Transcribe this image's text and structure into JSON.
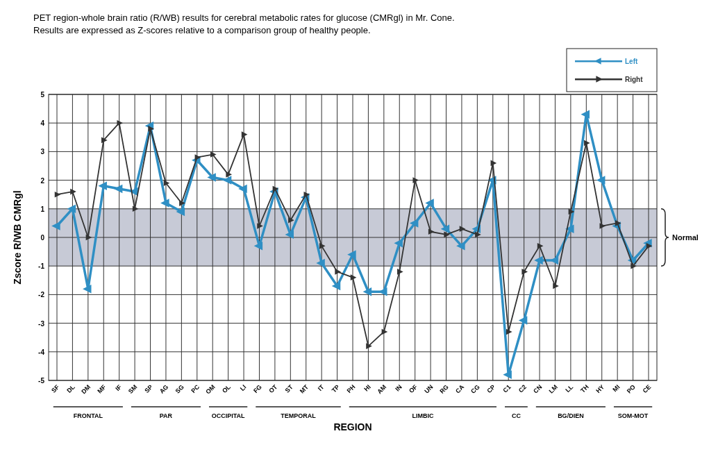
{
  "chart_data": {
    "type": "line",
    "title": "PET region-whole brain ratio (R/WB) results for cerebral metabolic rates for glucose (CMRgl) in Mr. Cone.",
    "subtitle": "Results are expressed as Z-scores relative to a comparison group of healthy people.",
    "xlabel": "REGION",
    "ylabel": "Zscore R/WB CMRgl",
    "categories": [
      "SF",
      "DL",
      "DM",
      "MF",
      "IF",
      "SM",
      "SP",
      "AG",
      "SG",
      "PC",
      "OM",
      "OL",
      "LI",
      "FG",
      "OT",
      "ST",
      "MT",
      "IT",
      "TP",
      "PH",
      "HI",
      "AM",
      "IN",
      "OF",
      "UN",
      "RG",
      "CA",
      "CG",
      "CP",
      "C1",
      "C2",
      "CN",
      "LM",
      "LL",
      "TH",
      "HY",
      "MI",
      "PO",
      "CE"
    ],
    "series": [
      {
        "name": "Left",
        "color": "#2f8fc4",
        "values": [
          0.4,
          1.0,
          -1.8,
          1.8,
          1.7,
          1.6,
          3.9,
          1.2,
          0.9,
          2.7,
          2.1,
          2.0,
          1.7,
          -0.3,
          1.6,
          0.1,
          1.4,
          -0.9,
          -1.7,
          -0.6,
          -1.9,
          -1.9,
          -0.2,
          0.5,
          1.2,
          0.3,
          -0.3,
          0.3,
          2.0,
          -4.8,
          -2.9,
          -0.8,
          -0.8,
          0.3,
          4.3,
          2.0,
          0.4,
          -0.8,
          -0.2
        ]
      },
      {
        "name": "Right",
        "color": "#333333",
        "values": [
          1.5,
          1.6,
          0.0,
          3.4,
          4.0,
          1.0,
          3.8,
          1.9,
          1.2,
          2.8,
          2.9,
          2.2,
          3.6,
          0.4,
          1.7,
          0.6,
          1.5,
          -0.3,
          -1.2,
          -1.4,
          -3.8,
          -3.3,
          -1.2,
          2.0,
          0.2,
          0.1,
          0.3,
          0.1,
          2.6,
          -3.3,
          -1.2,
          -0.3,
          -1.7,
          0.9,
          3.3,
          0.4,
          0.5,
          -1.0,
          -0.3
        ]
      }
    ],
    "ylim": [
      -5,
      5
    ],
    "yticks": [
      -5,
      -4,
      -3,
      -2,
      -1,
      0,
      1,
      2,
      3,
      4,
      5
    ],
    "grid": true,
    "legend": "top right",
    "marker": "triangle",
    "line_style": "solid",
    "bands": [
      {
        "axis": "y",
        "from": -1,
        "to": 1,
        "label": "Normal",
        "color": "#b9bdcc"
      }
    ],
    "annotations": [
      "FRONTAL",
      "PAR",
      "OCCIPITAL",
      "TEMPORAL",
      "LIMBIC",
      "CC",
      "BG/DIEN",
      "SOM-MOT"
    ]
  }
}
